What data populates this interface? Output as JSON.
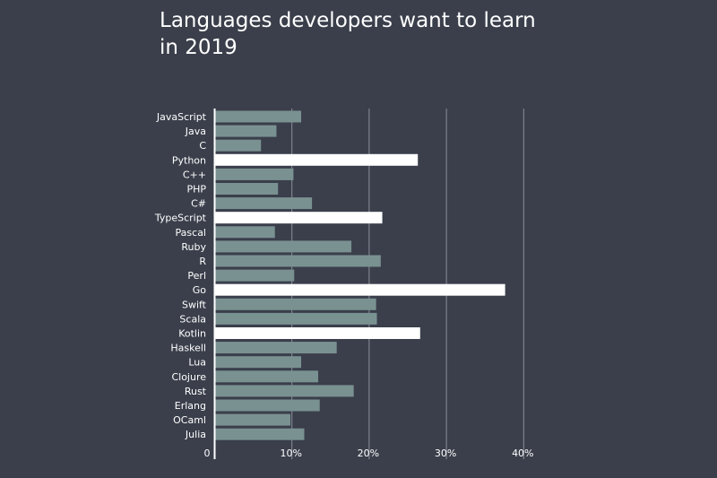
{
  "colors": {
    "background": "#3a3f4b",
    "bar_default": "#7a9191",
    "bar_highlight": "#ffffff",
    "gridline": "#8a8f99",
    "axis": "#ffffff",
    "text": "#ffffff"
  },
  "chart_data": {
    "type": "bar",
    "orientation": "horizontal",
    "title": "Languages developers want to learn in 2019",
    "xlabel": "",
    "ylabel": "",
    "xlim": [
      0,
      40
    ],
    "x_ticks": [
      {
        "value": 0,
        "label": "0"
      },
      {
        "value": 10,
        "label": "10%"
      },
      {
        "value": 20,
        "label": "20%"
      },
      {
        "value": 30,
        "label": "30%"
      },
      {
        "value": 40,
        "label": "40%"
      }
    ],
    "grid": true,
    "categories": [
      "JavaScript",
      "Java",
      "C",
      "Python",
      "C++",
      "PHP",
      "C#",
      "TypeScript",
      "Pascal",
      "Ruby",
      "R",
      "Perl",
      "Go",
      "Swift",
      "Scala",
      "Kotlin",
      "Haskell",
      "Lua",
      "Clojure",
      "Rust",
      "Erlang",
      "OCaml",
      "Julia"
    ],
    "values": [
      11.2,
      8.0,
      6.0,
      26.3,
      10.2,
      8.2,
      12.6,
      21.7,
      7.8,
      17.7,
      21.5,
      10.3,
      37.6,
      20.9,
      21.0,
      26.6,
      15.8,
      11.2,
      13.4,
      18.0,
      13.6,
      9.8,
      11.6
    ],
    "highlighted": [
      "Python",
      "TypeScript",
      "Go",
      "Kotlin"
    ]
  }
}
